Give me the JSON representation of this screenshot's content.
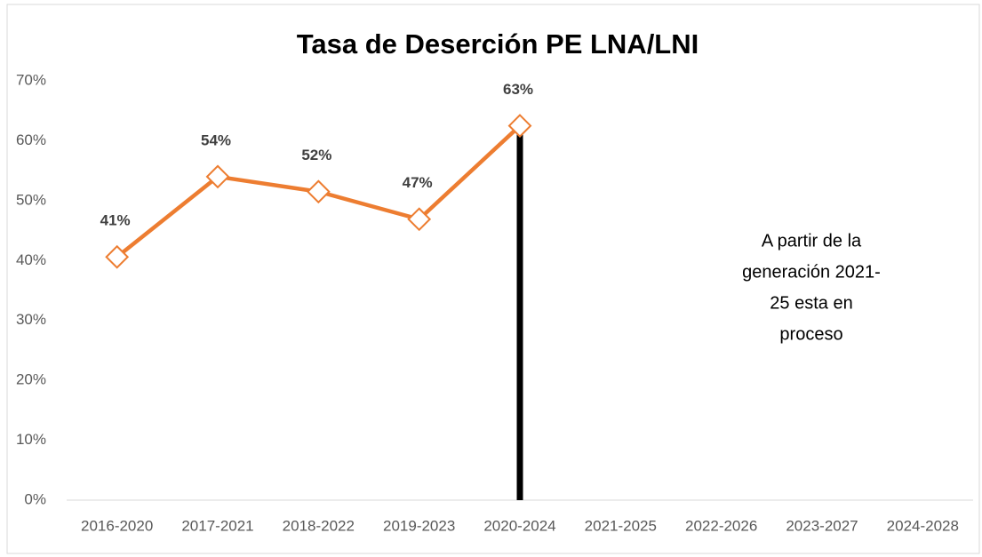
{
  "chart_data": {
    "type": "line",
    "title": "Tasa de Deserción PE LNA/LNI",
    "categories": [
      "2016-2020",
      "2017-2021",
      "2018-2022",
      "2019-2023",
      "2020-2024",
      "2021-2025",
      "2022-2026",
      "2023-2027",
      "2024-2028"
    ],
    "series": [
      {
        "name": "Tasa de Deserción",
        "color": "#ed7d31",
        "values": [
          40.6,
          54,
          51.5,
          46.9,
          62.5,
          null,
          null,
          null,
          null
        ],
        "value_labels": [
          "41%",
          "54%",
          "52%",
          "47%",
          "63%",
          null,
          null,
          null,
          null
        ]
      }
    ],
    "ylim": [
      0,
      70
    ],
    "yticks": [
      {
        "value": 0,
        "label": "0%"
      },
      {
        "value": 10,
        "label": "10%"
      },
      {
        "value": 20,
        "label": "20%"
      },
      {
        "value": 30,
        "label": "30%"
      },
      {
        "value": 40,
        "label": "40%"
      },
      {
        "value": 50,
        "label": "50%"
      },
      {
        "value": 60,
        "label": "60%"
      },
      {
        "value": 70,
        "label": "70%"
      }
    ],
    "grid": false,
    "annotation": [
      "A partir de la",
      "generación 2021-",
      "25 esta en",
      "proceso"
    ]
  }
}
